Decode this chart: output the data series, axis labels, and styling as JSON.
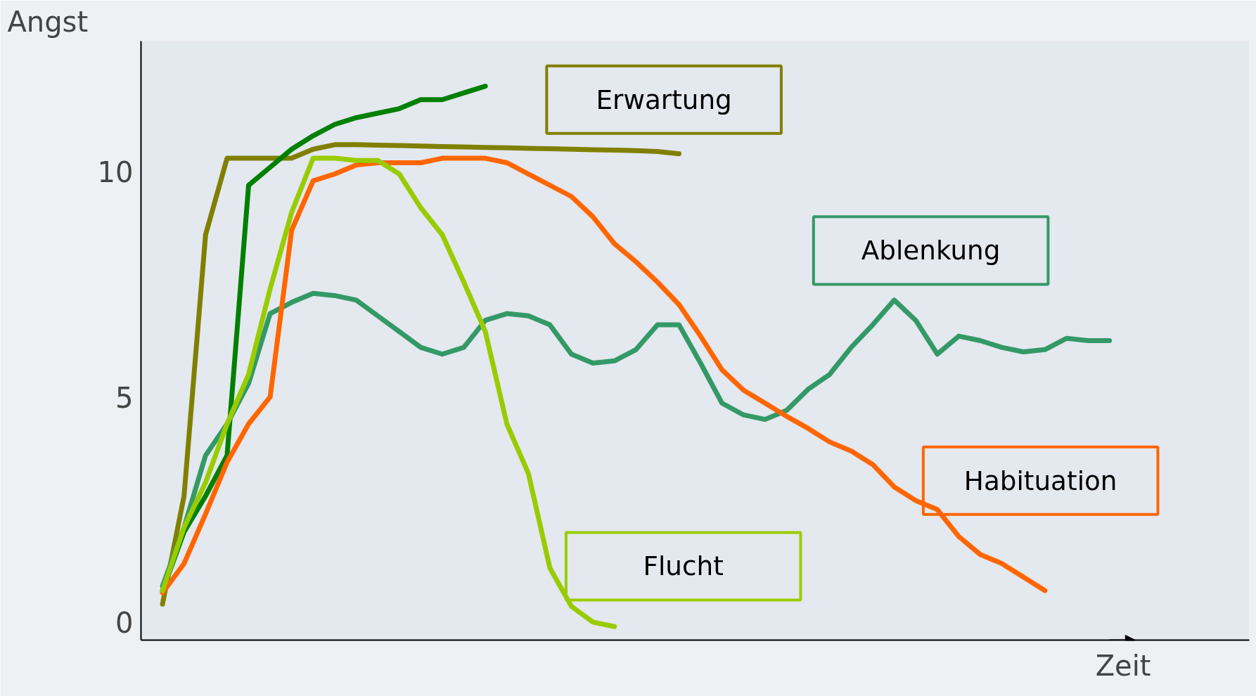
{
  "chart_data": {
    "type": "line",
    "xlabel": "Zeit",
    "ylabel": "Angst",
    "tick_labels": "y",
    "grid": false,
    "categories": [
      null,
      null,
      null,
      null,
      null,
      null,
      null,
      null,
      null,
      null,
      null,
      null,
      null,
      null,
      null,
      null,
      null,
      null,
      null,
      null,
      null,
      null,
      null,
      null,
      null,
      null,
      null,
      null,
      null,
      null,
      null,
      null,
      null,
      null,
      null,
      null,
      null,
      null,
      null,
      null,
      null,
      null,
      null,
      null,
      null
    ],
    "ylim": [
      -0.4,
      12.9
    ],
    "yticks": [
      0,
      5,
      10
    ],
    "series": [
      {
        "name": "Erwartung",
        "color": "#808000",
        "values": [
          0.4,
          2.8,
          8.6,
          10.3,
          10.3,
          10.3,
          10.3,
          10.5,
          10.6,
          10.6,
          10.59,
          10.58,
          10.57,
          10.56,
          10.55,
          10.54,
          10.53,
          10.52,
          10.51,
          10.5,
          10.49,
          10.48,
          10.47,
          10.45,
          10.4,
          null,
          null,
          null,
          null,
          null,
          null,
          null,
          null,
          null,
          null,
          null,
          null,
          null,
          null,
          null,
          null,
          null,
          null,
          null,
          null
        ]
      },
      {
        "name": null,
        "color": "#008000",
        "values": [
          0.7,
          2.0,
          2.8,
          3.7,
          9.7,
          10.1,
          10.5,
          10.8,
          11.05,
          11.2,
          11.3,
          11.4,
          11.6,
          11.6,
          11.75,
          11.9,
          null,
          null,
          null,
          null,
          null,
          null,
          null,
          null,
          null,
          null,
          null,
          null,
          null,
          null,
          null,
          null,
          null,
          null,
          null,
          null,
          null,
          null,
          null,
          null,
          null,
          null,
          null,
          null,
          null
        ]
      },
      {
        "name": "Ablenkung",
        "color": "#339966",
        "values": [
          0.8,
          2.1,
          3.7,
          4.4,
          5.3,
          6.85,
          7.1,
          7.3,
          7.25,
          7.15,
          6.8,
          6.45,
          6.1,
          5.95,
          6.1,
          6.7,
          6.85,
          6.8,
          6.6,
          5.95,
          5.75,
          5.8,
          6.05,
          6.6,
          6.6,
          5.75,
          4.86,
          4.6,
          4.5,
          4.7,
          5.17,
          5.5,
          6.1,
          6.6,
          7.15,
          6.7,
          5.95,
          6.35,
          6.25,
          6.1,
          6.0,
          6.05,
          6.3,
          6.25,
          6.25
        ]
      },
      {
        "name": "Habituation",
        "color": "#ff6600",
        "values": [
          0.65,
          1.3,
          2.4,
          3.55,
          4.4,
          5.0,
          8.7,
          9.8,
          9.95,
          10.15,
          10.2,
          10.2,
          10.2,
          10.3,
          10.3,
          10.3,
          10.2,
          9.95,
          9.7,
          9.45,
          9.0,
          8.4,
          8.0,
          7.55,
          7.05,
          6.35,
          5.6,
          5.15,
          4.86,
          4.57,
          4.3,
          4.0,
          3.8,
          3.5,
          3.0,
          2.7,
          2.5,
          1.9,
          1.5,
          1.3,
          1.0,
          0.7,
          null,
          null,
          null
        ]
      },
      {
        "name": "Flucht",
        "color": "#99cc00",
        "values": [
          0.7,
          2.1,
          3.1,
          4.4,
          5.5,
          7.4,
          9.1,
          10.3,
          10.3,
          10.25,
          10.25,
          9.95,
          9.2,
          8.6,
          7.55,
          6.45,
          4.4,
          3.3,
          1.2,
          0.35,
          0.0,
          -0.1,
          null,
          null,
          null,
          null,
          null,
          null,
          null,
          null,
          null,
          null,
          null,
          null,
          null,
          null,
          null,
          null,
          null,
          null,
          null,
          null,
          null,
          null,
          null
        ]
      }
    ]
  }
}
